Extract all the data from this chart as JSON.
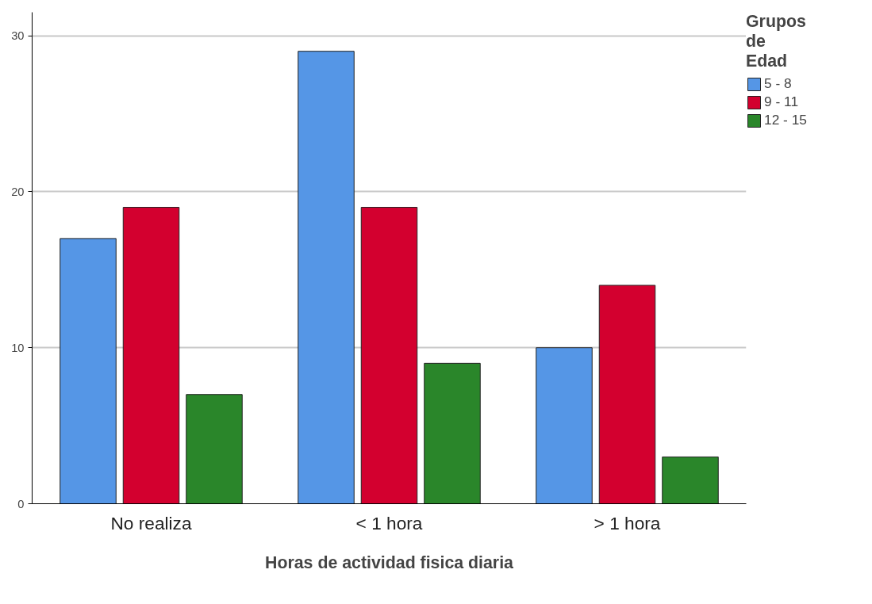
{
  "chart_data": {
    "type": "bar",
    "xlabel": "Horas de actividad fisica diaria",
    "legend_title": "Grupos de Edad",
    "categories": [
      "No realiza",
      "< 1 hora",
      "> 1 hora"
    ],
    "series": [
      {
        "name": "5 - 8",
        "color": "#5596e6",
        "values": [
          17,
          29,
          10
        ]
      },
      {
        "name": "9 - 11",
        "color": "#d3002f",
        "values": [
          19,
          19,
          14
        ]
      },
      {
        "name": "12 - 15",
        "color": "#2a862a",
        "values": [
          7,
          9,
          3
        ]
      }
    ],
    "ylim": [
      0,
      31.5
    ],
    "yticks": [
      0,
      10,
      20,
      30
    ],
    "grid": "y",
    "legend": "top right"
  }
}
